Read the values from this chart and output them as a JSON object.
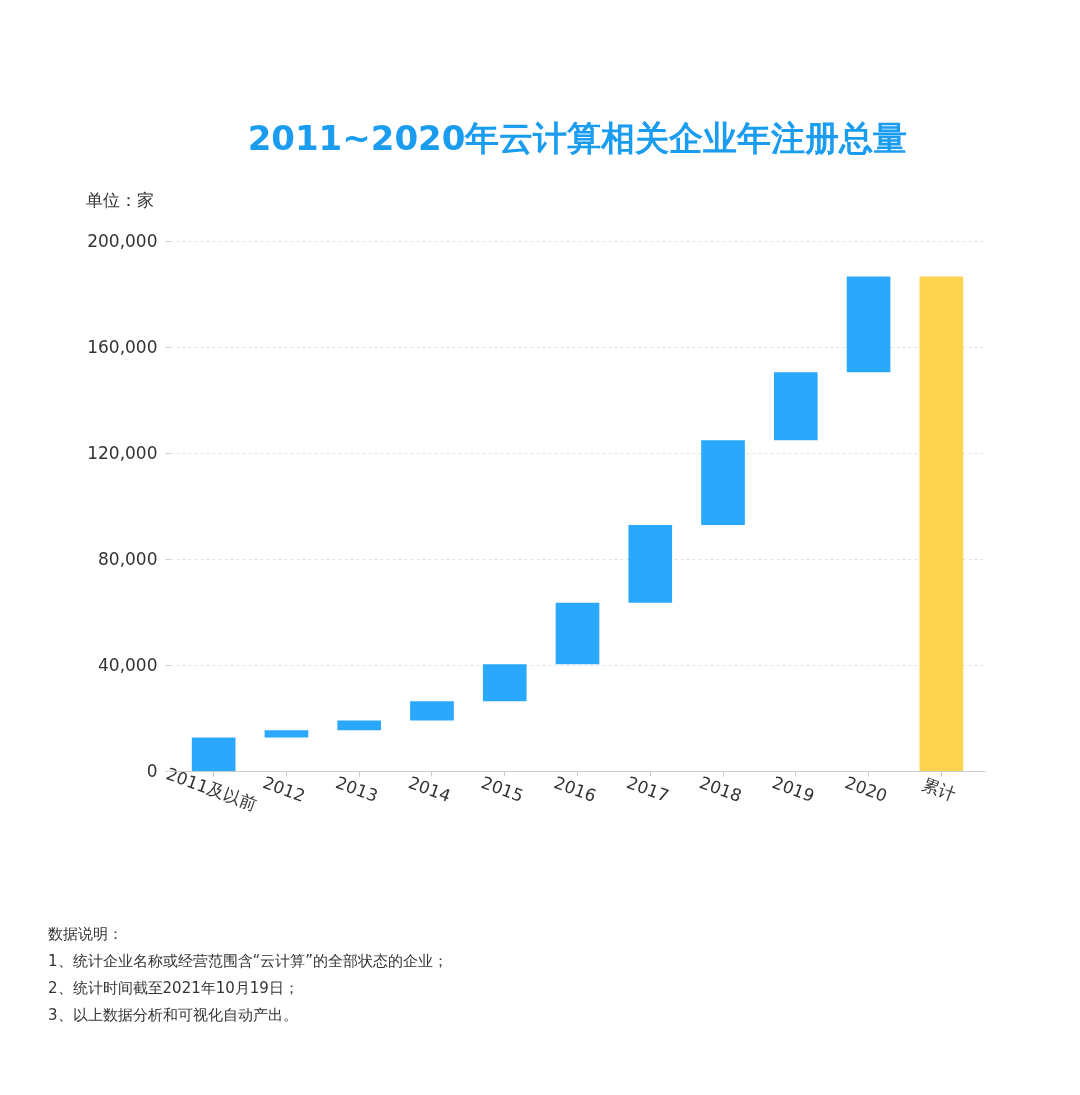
{
  "chart_data": {
    "type": "bar",
    "title": "2011~2020年云计算相关企业年注册总量",
    "ylabel": "单位：家",
    "categories": [
      "2011及以前",
      "2012",
      "2013",
      "2014",
      "2015",
      "2016",
      "2017",
      "2018",
      "2019",
      "2020",
      "累计"
    ],
    "values": [
      12600,
      2800,
      3700,
      7200,
      14000,
      23200,
      29300,
      32000,
      25700,
      36100,
      186600
    ],
    "base": [
      0,
      12600,
      15400,
      19100,
      26300,
      40300,
      63500,
      92800,
      124800,
      150500,
      0
    ],
    "colors": [
      "#29a8fc",
      "#29a8fc",
      "#29a8fc",
      "#29a8fc",
      "#29a8fc",
      "#29a8fc",
      "#29a8fc",
      "#29a8fc",
      "#29a8fc",
      "#29a8fc",
      "#fcd34e"
    ],
    "ylim": [
      0,
      200000
    ],
    "yticks": [
      0,
      {
        "value": 40000,
        "label": "40,000"
      },
      {
        "value": 80000,
        "label": "80,000"
      },
      {
        "value": 120000,
        "label": "120,000"
      },
      {
        "value": 160000,
        "label": "160,000"
      },
      {
        "value": 200000,
        "label": "200,000"
      }
    ],
    "grid": "y",
    "annotations": [
      "数据说明：",
      "1、统计企业名称或经营范围含“云计算”的全部状态的企业；",
      "2、统计时间截至2021年10月19日；",
      "3、以上数据分析和可视化自动产出。"
    ]
  }
}
